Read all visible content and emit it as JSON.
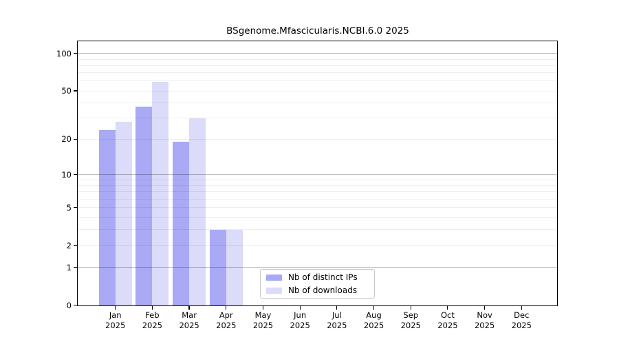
{
  "title": "BSgenome.Mfascicularis.NCBI.6.0 2025",
  "chart_data": {
    "type": "bar",
    "title": "BSgenome.Mfascicularis.NCBI.6.0 2025",
    "categories": [
      "Jan",
      "Feb",
      "Mar",
      "Apr",
      "May",
      "Jun",
      "Jul",
      "Aug",
      "Sep",
      "Oct",
      "Nov",
      "Dec"
    ],
    "year_label": "2025",
    "series": [
      {
        "name": "Nb of distinct IPs",
        "color": "#a9a9f6",
        "values": [
          24,
          37,
          19,
          3,
          0,
          0,
          0,
          0,
          0,
          0,
          0,
          0
        ]
      },
      {
        "name": "Nb of downloads",
        "color": "#dbdbfa",
        "values": [
          28,
          59,
          30,
          3,
          0,
          0,
          0,
          0,
          0,
          0,
          0,
          0
        ]
      }
    ],
    "y_axis": {
      "scale": "log1p",
      "tick_labels": [
        0,
        1,
        2,
        5,
        10,
        20,
        50,
        100
      ],
      "major_gridlines": [
        1,
        10,
        100
      ],
      "minor_gridlines": [
        2,
        3,
        4,
        5,
        6,
        7,
        8,
        9,
        20,
        30,
        40,
        50,
        60,
        70,
        80,
        90
      ],
      "ylim": [
        0,
        127
      ]
    },
    "xlabel": "",
    "ylabel": "",
    "grid": "horizontal",
    "legend_position": "lower-center",
    "colors": {
      "spine": "#000000",
      "major_grid": "#bfbfbf",
      "minor_grid": "#ededed",
      "background": "#ffffff"
    }
  }
}
